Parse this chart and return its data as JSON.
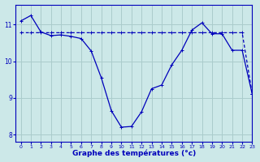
{
  "xlabel": "Graphe des températures (°c)",
  "bg_color": "#cce8e8",
  "grid_color": "#aacccc",
  "line_color": "#0000bb",
  "xlim": [
    -0.5,
    23
  ],
  "ylim": [
    7.8,
    11.55
  ],
  "yticks": [
    8,
    9,
    10,
    11
  ],
  "xticks": [
    0,
    1,
    2,
    3,
    4,
    5,
    6,
    7,
    8,
    9,
    10,
    11,
    12,
    13,
    14,
    15,
    16,
    17,
    18,
    19,
    20,
    21,
    22,
    23
  ],
  "series1_x": [
    0,
    1,
    2,
    3,
    4,
    5,
    6,
    7,
    8,
    9,
    10,
    11,
    12,
    13,
    14,
    15,
    16,
    17,
    18,
    19,
    20,
    21,
    22,
    23
  ],
  "series1_y": [
    11.1,
    11.25,
    10.8,
    10.7,
    10.72,
    10.68,
    10.62,
    10.28,
    9.55,
    8.65,
    8.2,
    8.22,
    8.62,
    9.25,
    9.35,
    9.9,
    10.3,
    10.85,
    11.05,
    10.75,
    10.75,
    10.3,
    10.3,
    9.1
  ],
  "series2_x": [
    0,
    1,
    2,
    3,
    4,
    5,
    6,
    7,
    8,
    9,
    10,
    11,
    12,
    13,
    14,
    15,
    16,
    17,
    18,
    19,
    20,
    21,
    22,
    23
  ],
  "series2_y": [
    10.78,
    10.78,
    10.78,
    10.78,
    10.78,
    10.78,
    10.78,
    10.78,
    10.78,
    10.78,
    10.78,
    10.78,
    10.78,
    10.78,
    10.78,
    10.78,
    10.78,
    10.78,
    10.78,
    10.78,
    10.78,
    10.78,
    10.78,
    9.1
  ]
}
